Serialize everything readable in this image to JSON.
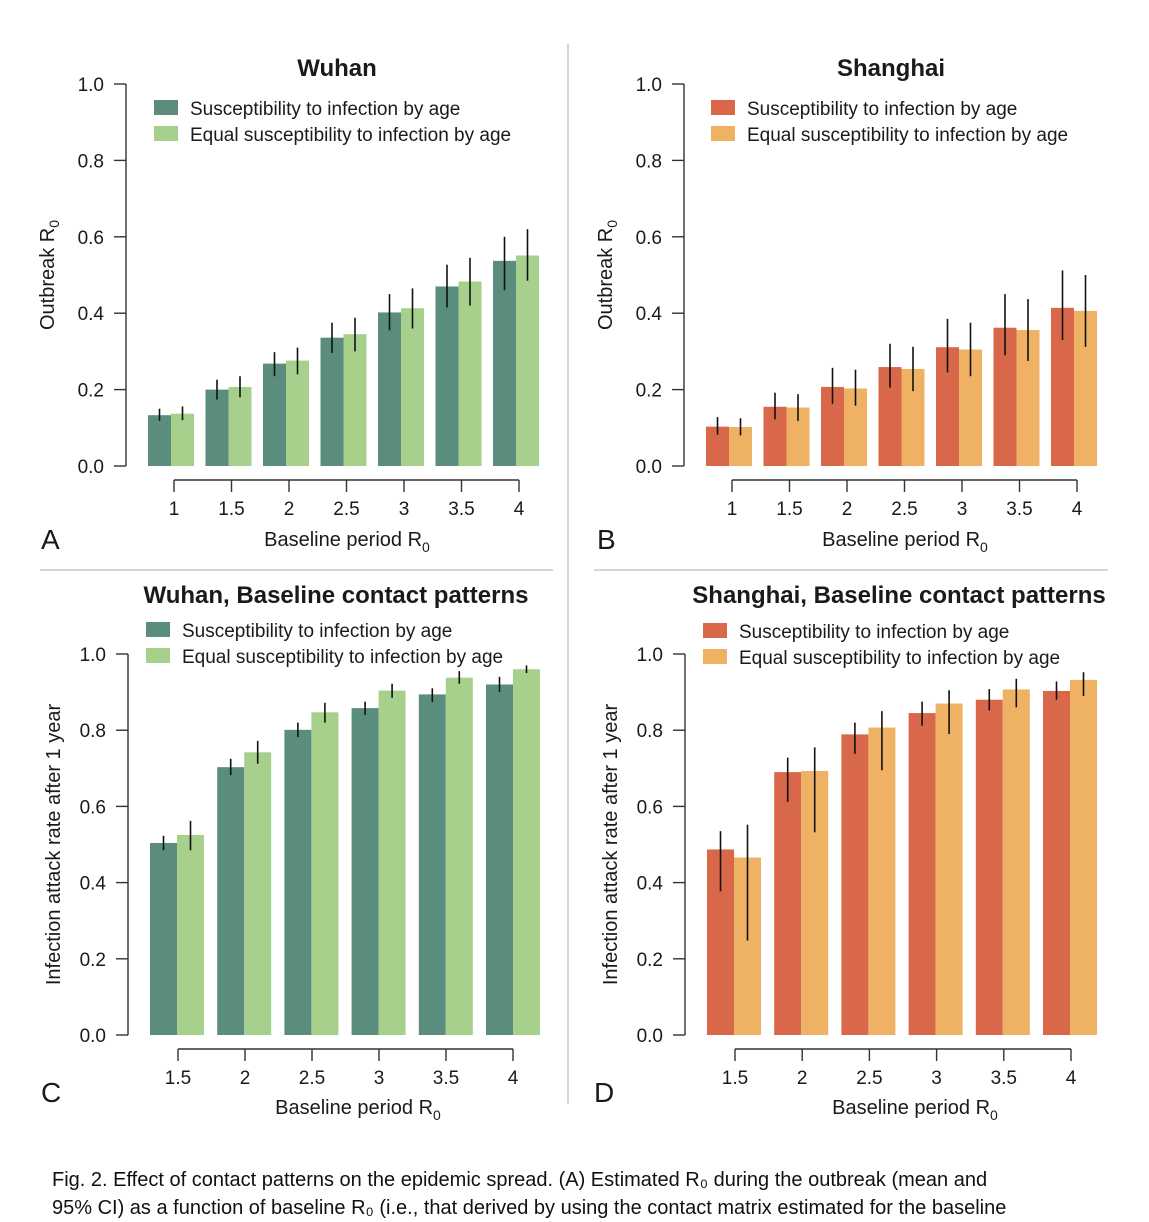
{
  "caption": {
    "line1": "Fig. 2. Effect of contact patterns on the epidemic spread. (A) Estimated R₀ during the outbreak (mean and",
    "line2": "95% CI) as a function of baseline R₀ (i.e., that derived by using the contact matrix estimated for the baseline"
  },
  "colors": {
    "wuhan_dark": "#5b8d7f",
    "wuhan_light": "#a8d08d",
    "shanghai_dark": "#d9684a",
    "shanghai_light": "#efb264",
    "axis": "#333333",
    "divider": "#c8c8c8"
  },
  "chart_data": [
    {
      "panel": "A",
      "type": "bar",
      "title": "Wuhan",
      "xlabel": "Baseline period R",
      "xlabel_sub": "0",
      "ylabel": "Outbreak R",
      "ylabel_sub": "0",
      "ylim": [
        0,
        1
      ],
      "yticks": [
        "0.0",
        "0.2",
        "0.4",
        "0.6",
        "0.8",
        "1.0"
      ],
      "legend_position": "top-left",
      "categories": [
        "1",
        "1.5",
        "2",
        "2.5",
        "3",
        "3.5",
        "4"
      ],
      "series": [
        {
          "name": "Susceptibility to infection by age",
          "color_key": "wuhan_dark",
          "values": [
            0.133,
            0.2,
            0.268,
            0.336,
            0.402,
            0.47,
            0.537
          ],
          "ci_low": [
            0.118,
            0.174,
            0.235,
            0.296,
            0.355,
            0.415,
            0.46
          ],
          "ci_high": [
            0.15,
            0.226,
            0.298,
            0.375,
            0.45,
            0.527,
            0.6
          ]
        },
        {
          "name": "Equal susceptibility to infection by age",
          "color_key": "wuhan_light",
          "values": [
            0.137,
            0.207,
            0.276,
            0.345,
            0.413,
            0.483,
            0.551
          ],
          "ci_low": [
            0.12,
            0.18,
            0.24,
            0.3,
            0.36,
            0.42,
            0.485
          ],
          "ci_high": [
            0.156,
            0.235,
            0.31,
            0.388,
            0.465,
            0.545,
            0.62
          ]
        }
      ]
    },
    {
      "panel": "B",
      "type": "bar",
      "title": "Shanghai",
      "xlabel": "Baseline period R",
      "xlabel_sub": "0",
      "ylabel": "Outbreak R",
      "ylabel_sub": "0",
      "ylim": [
        0,
        1
      ],
      "yticks": [
        "0.0",
        "0.2",
        "0.4",
        "0.6",
        "0.8",
        "1.0"
      ],
      "legend_position": "top-left",
      "categories": [
        "1",
        "1.5",
        "2",
        "2.5",
        "3",
        "3.5",
        "4"
      ],
      "series": [
        {
          "name": "Susceptibility to infection by age",
          "color_key": "shanghai_dark",
          "values": [
            0.103,
            0.155,
            0.207,
            0.259,
            0.311,
            0.362,
            0.414
          ],
          "ci_low": [
            0.082,
            0.122,
            0.163,
            0.205,
            0.245,
            0.29,
            0.33
          ],
          "ci_high": [
            0.128,
            0.192,
            0.257,
            0.32,
            0.385,
            0.45,
            0.512
          ]
        },
        {
          "name": "Equal susceptibility to infection by age",
          "color_key": "shanghai_light",
          "values": [
            0.102,
            0.153,
            0.203,
            0.254,
            0.305,
            0.356,
            0.406
          ],
          "ci_low": [
            0.08,
            0.118,
            0.158,
            0.196,
            0.235,
            0.275,
            0.312
          ],
          "ci_high": [
            0.125,
            0.188,
            0.252,
            0.312,
            0.375,
            0.437,
            0.5
          ]
        }
      ]
    },
    {
      "panel": "C",
      "type": "bar",
      "title": "Wuhan, Baseline contact patterns",
      "xlabel": "Baseline period R",
      "xlabel_sub": "0",
      "ylabel": "Infection attack rate after 1 year",
      "ylabel_sub": "",
      "ylim": [
        0,
        1
      ],
      "yticks": [
        "0.0",
        "0.2",
        "0.4",
        "0.6",
        "0.8",
        "1.0"
      ],
      "legend_position": "top-left",
      "categories": [
        "1.5",
        "2",
        "2.5",
        "3",
        "3.5",
        "4"
      ],
      "series": [
        {
          "name": "Susceptibility to infection by age",
          "color_key": "wuhan_dark",
          "values": [
            0.504,
            0.703,
            0.801,
            0.858,
            0.894,
            0.92
          ],
          "ci_low": [
            0.485,
            0.682,
            0.782,
            0.84,
            0.874,
            0.9
          ],
          "ci_high": [
            0.523,
            0.725,
            0.82,
            0.875,
            0.91,
            0.94
          ]
        },
        {
          "name": "Equal susceptibility to infection by age",
          "color_key": "wuhan_light",
          "values": [
            0.525,
            0.742,
            0.847,
            0.904,
            0.938,
            0.96
          ],
          "ci_low": [
            0.485,
            0.712,
            0.82,
            0.885,
            0.922,
            0.95
          ],
          "ci_high": [
            0.562,
            0.772,
            0.872,
            0.922,
            0.955,
            0.97
          ]
        }
      ]
    },
    {
      "panel": "D",
      "type": "bar",
      "title": "Shanghai, Baseline contact patterns",
      "xlabel": "Baseline period R",
      "xlabel_sub": "0",
      "ylabel": "Infection attack rate after 1 year",
      "ylabel_sub": "",
      "ylim": [
        0,
        1
      ],
      "yticks": [
        "0.0",
        "0.2",
        "0.4",
        "0.6",
        "0.8",
        "1.0"
      ],
      "legend_position": "top-left",
      "categories": [
        "1.5",
        "2",
        "2.5",
        "3",
        "3.5",
        "4"
      ],
      "series": [
        {
          "name": "Susceptibility to infection by age",
          "color_key": "shanghai_dark",
          "values": [
            0.487,
            0.69,
            0.789,
            0.845,
            0.88,
            0.903
          ],
          "ci_low": [
            0.377,
            0.612,
            0.738,
            0.812,
            0.852,
            0.88
          ],
          "ci_high": [
            0.535,
            0.728,
            0.82,
            0.875,
            0.908,
            0.928
          ]
        },
        {
          "name": "Equal susceptibility to infection by age",
          "color_key": "shanghai_light",
          "values": [
            0.466,
            0.693,
            0.807,
            0.87,
            0.907,
            0.932
          ],
          "ci_low": [
            0.248,
            0.532,
            0.695,
            0.79,
            0.86,
            0.89
          ],
          "ci_high": [
            0.552,
            0.755,
            0.85,
            0.905,
            0.935,
            0.952
          ]
        }
      ]
    }
  ]
}
